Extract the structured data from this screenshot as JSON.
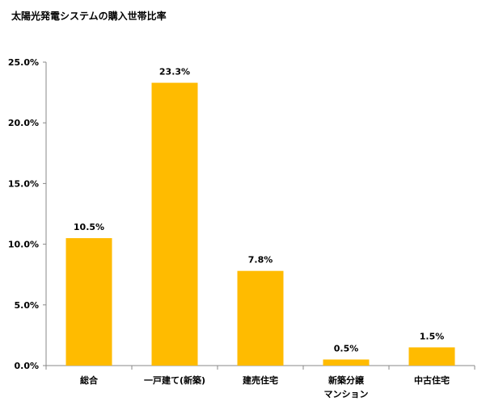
{
  "chart_data": {
    "type": "bar",
    "title": "太陽光発電システムの購入世帯比率",
    "categories": [
      [
        "総合"
      ],
      [
        "一戸建て(新築)"
      ],
      [
        "建売住宅"
      ],
      [
        "新築分譲",
        "マンション"
      ],
      [
        "中古住宅"
      ]
    ],
    "values": [
      10.5,
      23.3,
      7.8,
      0.5,
      1.5
    ],
    "data_labels": [
      "10.5%",
      "23.3%",
      "7.8%",
      "0.5%",
      "1.5%"
    ],
    "ylim": [
      0,
      25
    ],
    "yticks": [
      0,
      5,
      10,
      15,
      20,
      25
    ],
    "ytick_labels": [
      "0.0%",
      "5.0%",
      "10.0%",
      "15.0%",
      "20.0%",
      "25.0%"
    ],
    "grid": false,
    "legend": "none",
    "bar_color": "#FFBB00",
    "axis_color": "#888888"
  }
}
